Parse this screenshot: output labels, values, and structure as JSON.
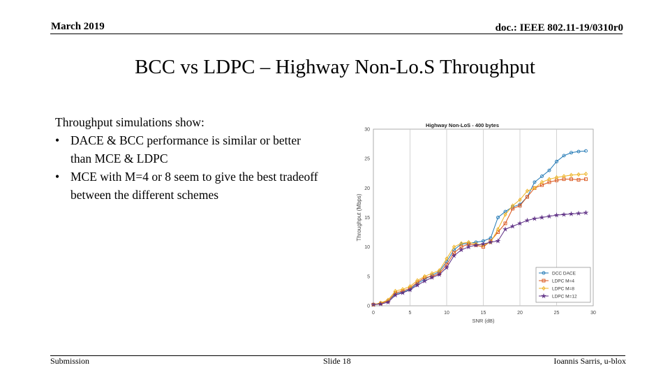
{
  "header": {
    "date": "March 2019",
    "doc_id": "doc.: IEEE 802.11-19/0310r0"
  },
  "slide": {
    "title": "BCC vs LDPC – Highway Non-Lo.S Throughput",
    "intro": "Throughput simulations show:",
    "bullets": [
      "DACE & BCC performance is similar or better than MCE & LDPC",
      "MCE with M=4 or 8 seem to give the best tradeoff between the different schemes"
    ],
    "bullet_glyph": "•"
  },
  "footer": {
    "left": "Submission",
    "center": "Slide 18",
    "right": "Ioannis Sarris, u-blox"
  },
  "chart_data": {
    "type": "line",
    "title": "Highway Non-LoS - 400 bytes",
    "xlabel": "SNR (dB)",
    "ylabel": "Throughput (Mbps)",
    "xlim": [
      0,
      30
    ],
    "ylim": [
      0,
      30
    ],
    "xticks": [
      0,
      5,
      10,
      15,
      20,
      25,
      30
    ],
    "yticks": [
      0,
      5,
      10,
      15,
      20,
      25,
      30
    ],
    "grid": "x-major",
    "legend_position": "bottom-right",
    "x": [
      0,
      1,
      2,
      3,
      4,
      5,
      6,
      7,
      8,
      9,
      10,
      11,
      12,
      13,
      14,
      15,
      16,
      17,
      18,
      19,
      20,
      21,
      22,
      23,
      24,
      25,
      26,
      27,
      28,
      29
    ],
    "series": [
      {
        "name": "DCC DACE",
        "color": "#1f77b4",
        "marker": "circle",
        "values": [
          0.2,
          0.4,
          0.8,
          2.0,
          2.3,
          2.8,
          3.8,
          4.5,
          5.2,
          5.8,
          7.5,
          9.5,
          10.5,
          10.6,
          10.8,
          11.0,
          11.5,
          15.0,
          16.0,
          16.8,
          17.2,
          18.5,
          21.0,
          22.0,
          23.0,
          24.5,
          25.5,
          26.0,
          26.2,
          26.3
        ]
      },
      {
        "name": "LDPC M=4",
        "color": "#d95319",
        "marker": "square",
        "values": [
          0.2,
          0.4,
          0.8,
          2.2,
          2.5,
          3.0,
          4.0,
          4.8,
          5.0,
          5.5,
          7.0,
          9.0,
          10.0,
          10.5,
          10.3,
          10.0,
          11.0,
          12.5,
          14.0,
          16.5,
          17.0,
          18.5,
          20.0,
          20.5,
          21.0,
          21.3,
          21.5,
          21.5,
          21.4,
          21.5
        ]
      },
      {
        "name": "LDPC M=8",
        "color": "#edb120",
        "marker": "diamond",
        "values": [
          0.2,
          0.5,
          1.0,
          2.5,
          2.8,
          3.3,
          4.3,
          5.0,
          5.5,
          6.0,
          8.0,
          10.0,
          10.6,
          10.8,
          10.5,
          10.3,
          10.8,
          13.0,
          15.5,
          17.0,
          18.0,
          19.5,
          20.0,
          21.0,
          21.5,
          21.8,
          22.0,
          22.2,
          22.3,
          22.4
        ]
      },
      {
        "name": "LDPC M=12",
        "color": "#5b2c83",
        "marker": "star",
        "values": [
          0.2,
          0.3,
          0.6,
          1.8,
          2.2,
          2.7,
          3.5,
          4.2,
          4.8,
          5.3,
          6.5,
          8.5,
          9.5,
          10.0,
          10.3,
          10.5,
          10.8,
          11.0,
          13.0,
          13.5,
          14.0,
          14.5,
          14.8,
          15.0,
          15.2,
          15.4,
          15.5,
          15.6,
          15.7,
          15.8
        ]
      }
    ]
  }
}
